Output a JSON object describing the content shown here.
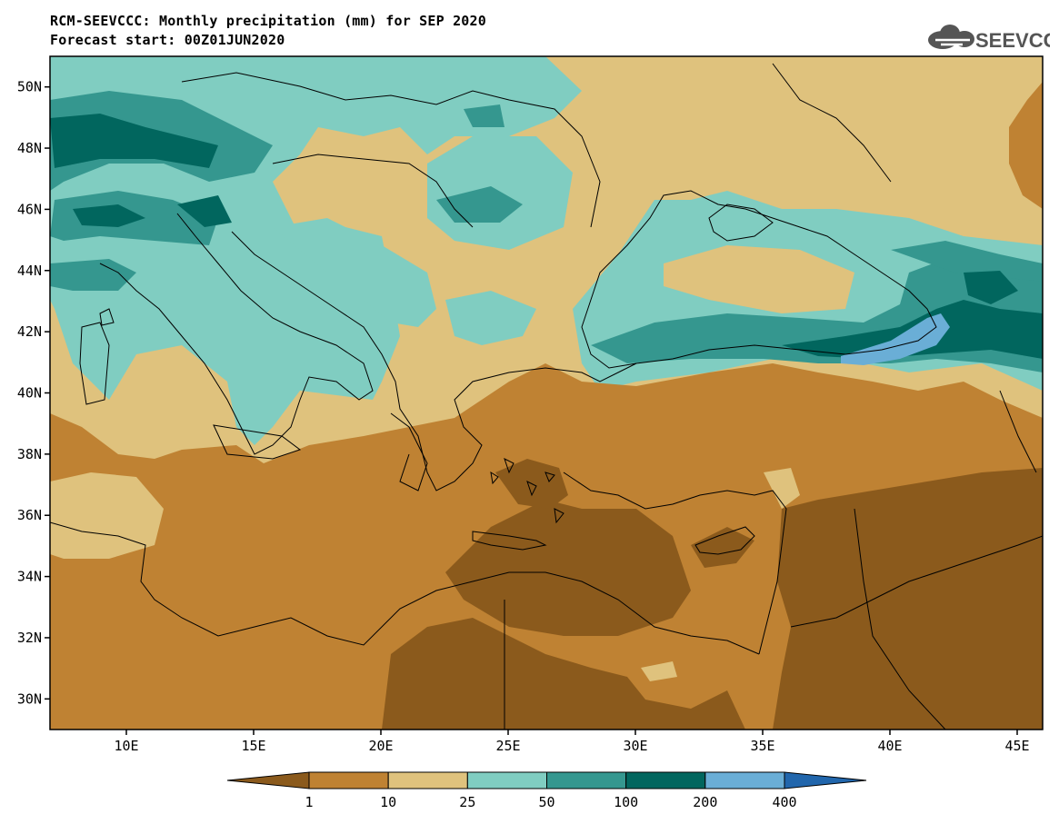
{
  "header": {
    "title": "RCM-SEEVCCC: Monthly precipitation (mm) for SEP 2020",
    "subtitle": "Forecast start: 00Z01JUN2020"
  },
  "logo": {
    "text": "SEEVCCC",
    "icon": "cloud-icon"
  },
  "map": {
    "lat_labels": [
      "50N",
      "48N",
      "46N",
      "44N",
      "42N",
      "40N",
      "38N",
      "36N",
      "34N",
      "32N",
      "30N"
    ],
    "lon_labels": [
      "10E",
      "15E",
      "20E",
      "25E",
      "30E",
      "35E",
      "40E",
      "45E"
    ],
    "lat_range": [
      29,
      51
    ],
    "lon_range": [
      7,
      46
    ]
  },
  "colorbar": {
    "ticks": [
      "1",
      "10",
      "25",
      "50",
      "100",
      "200",
      "400"
    ],
    "classes": [
      {
        "range": "<1",
        "color": "#8b5a1c"
      },
      {
        "range": "1-10",
        "color": "#bf8233"
      },
      {
        "range": "10-25",
        "color": "#dfc27d"
      },
      {
        "range": "25-50",
        "color": "#80cdc1"
      },
      {
        "range": "50-100",
        "color": "#35978f"
      },
      {
        "range": "100-200",
        "color": "#01665e"
      },
      {
        "range": "200-400",
        "color": "#6aaed6"
      },
      {
        "range": ">400",
        "color": "#2166ac"
      }
    ]
  }
}
